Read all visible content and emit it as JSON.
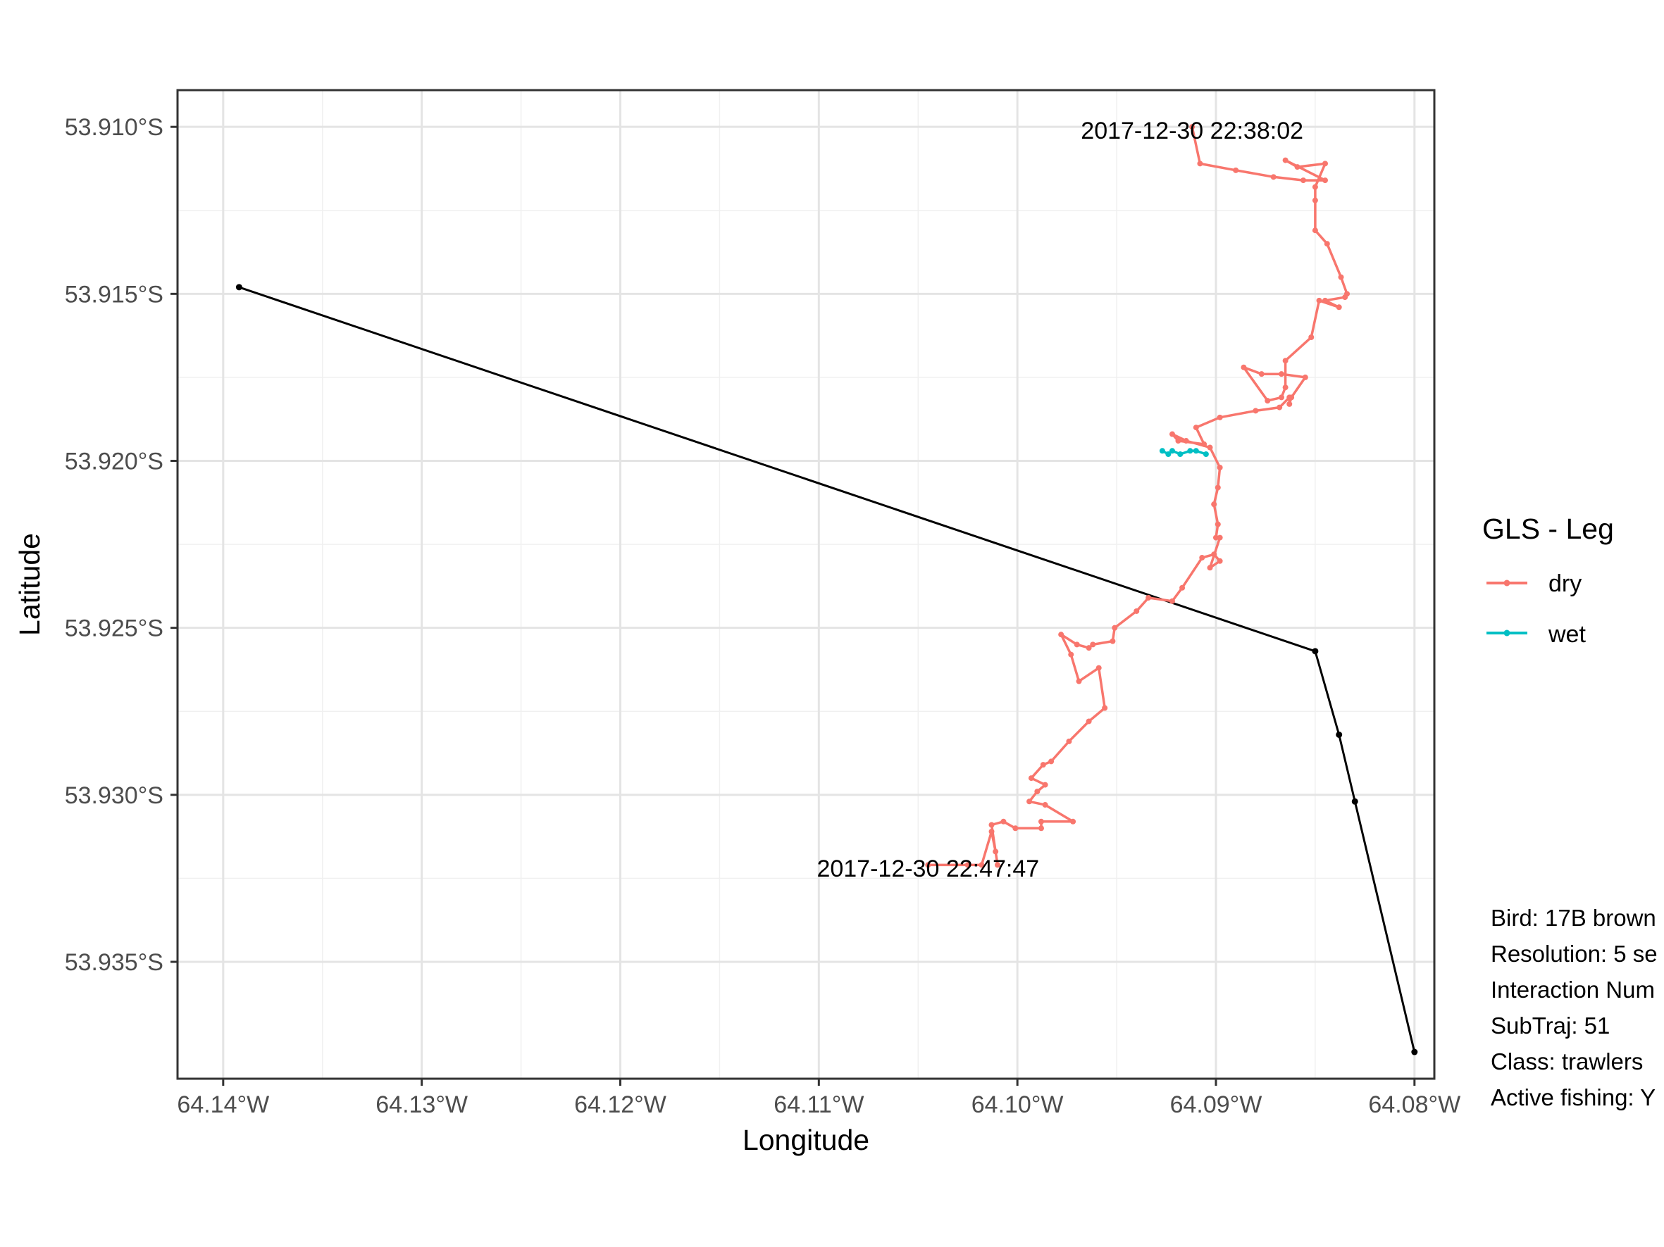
{
  "chart_data": {
    "type": "line",
    "xlabel": "Longitude",
    "ylabel": "Latitude",
    "xlim": [
      -64.1423,
      -64.079
    ],
    "ylim": [
      -53.9385,
      -53.9089
    ],
    "x_ticks": [
      {
        "value": -64.14,
        "label": "64.14°W"
      },
      {
        "value": -64.13,
        "label": "64.13°W"
      },
      {
        "value": -64.12,
        "label": "64.12°W"
      },
      {
        "value": -64.11,
        "label": "64.11°W"
      },
      {
        "value": -64.1,
        "label": "64.10°W"
      },
      {
        "value": -64.09,
        "label": "64.09°W"
      },
      {
        "value": -64.08,
        "label": "64.08°W"
      }
    ],
    "y_ticks": [
      {
        "value": -53.91,
        "label": "53.910°S"
      },
      {
        "value": -53.915,
        "label": "53.915°S"
      },
      {
        "value": -53.92,
        "label": "53.920°S"
      },
      {
        "value": -53.925,
        "label": "53.925°S"
      },
      {
        "value": -53.93,
        "label": "53.930°S"
      },
      {
        "value": -53.935,
        "label": "53.935°S"
      }
    ],
    "grid": true,
    "legend": {
      "title": "GLS - Leg",
      "position": "right",
      "entries": [
        {
          "label": "dry",
          "color": "#F8766D"
        },
        {
          "label": "wet",
          "color": "#00BFC4"
        }
      ]
    },
    "series": [
      {
        "name": "dry",
        "color": "#F8766D",
        "x": [
          -64.0912,
          -64.0908,
          -64.089,
          -64.0871,
          -64.0856,
          -64.0845,
          -64.0865,
          -64.0859,
          -64.0845,
          -64.085,
          -64.085,
          -64.085,
          -64.0844,
          -64.0837,
          -64.0834,
          -64.0835,
          -64.0845,
          -64.0838,
          -64.0848,
          -64.0852,
          -64.0865,
          -64.0865,
          -64.0867,
          -64.0874,
          -64.0886,
          -64.0877,
          -64.0867,
          -64.0855,
          -64.0862,
          -64.0863,
          -64.0863,
          -64.0868,
          -64.088,
          -64.0898,
          -64.091,
          -64.0906,
          -64.0919,
          -64.0922,
          -64.0915,
          -64.0903,
          -64.0898,
          -64.0899,
          -64.0901,
          -64.0899,
          -64.09,
          -64.0898,
          -64.0903,
          -64.0898,
          -64.0901,
          -64.0907,
          -64.0917,
          -64.0922,
          -64.0934,
          -64.094,
          -64.0951,
          -64.0952,
          -64.0962,
          -64.0964,
          -64.097,
          -64.0978,
          -64.0973,
          -64.0969,
          -64.0959,
          -64.0956,
          -64.0964,
          -64.0974,
          -64.0983,
          -64.0987,
          -64.0993,
          -64.0986,
          -64.099,
          -64.0994,
          -64.0986,
          -64.0972,
          -64.0988,
          -64.0988,
          -64.1001,
          -64.1007,
          -64.1013,
          -64.101,
          -64.1011,
          -64.1013,
          -64.1018,
          -64.1025,
          -64.1045
        ],
        "y": [
          -53.91,
          -53.9111,
          -53.9113,
          -53.9115,
          -53.9116,
          -53.9116,
          -53.911,
          -53.9112,
          -53.9111,
          -53.9118,
          -53.9122,
          -53.9131,
          -53.9135,
          -53.9145,
          -53.915,
          -53.9151,
          -53.9152,
          -53.9154,
          -53.9152,
          -53.9163,
          -53.917,
          -53.9178,
          -53.9181,
          -53.9182,
          -53.9172,
          -53.9174,
          -53.9174,
          -53.9175,
          -53.9181,
          -53.9183,
          -53.9181,
          -53.9184,
          -53.9185,
          -53.9187,
          -53.919,
          -53.9195,
          -53.9194,
          -53.9192,
          -53.9194,
          -53.9196,
          -53.9202,
          -53.9208,
          -53.9213,
          -53.9219,
          -53.9223,
          -53.9223,
          -53.9232,
          -53.923,
          -53.9228,
          -53.9229,
          -53.9238,
          -53.9242,
          -53.9241,
          -53.9245,
          -53.925,
          -53.9254,
          -53.9255,
          -53.9256,
          -53.9255,
          -53.9252,
          -53.9258,
          -53.9266,
          -53.9262,
          -53.9274,
          -53.9278,
          -53.9284,
          -53.929,
          -53.9291,
          -53.9295,
          -53.9297,
          -53.9299,
          -53.9302,
          -53.9303,
          -53.9308,
          -53.9308,
          -53.931,
          -53.931,
          -53.9308,
          -53.9309,
          -53.9321,
          -53.9317,
          -53.9311,
          -53.9321,
          -53.9321,
          -53.9321
        ]
      },
      {
        "name": "wet",
        "color": "#00BFC4",
        "x": [
          -64.0927,
          -64.0924,
          -64.0922,
          -64.0918,
          -64.0913,
          -64.091,
          -64.0905
        ],
        "y": [
          -53.9197,
          -53.9198,
          -53.9197,
          -53.9198,
          -53.9197,
          -53.9197,
          -53.9198
        ]
      },
      {
        "color": "#000000",
        "x": [
          -64.1392,
          -64.085,
          -64.0838,
          -64.083,
          -64.08
        ],
        "y": [
          -53.9148,
          -53.9257,
          -53.9282,
          -53.9302,
          -53.9377
        ]
      }
    ],
    "annotations": [
      {
        "text": "2017-12-30 22:38:02",
        "x": -64.0912,
        "y": -53.9101,
        "anchor": "middle"
      },
      {
        "text": "2017-12-30 22:47:47",
        "x": -64.1045,
        "y": -53.9322,
        "anchor": "middle"
      }
    ]
  },
  "info_lines": [
    "Bird: 17B brown",
    "Resolution: 5 se",
    "Interaction Num",
    "SubTraj: 51",
    "Class: trawlers",
    "Active fishing: Y"
  ]
}
